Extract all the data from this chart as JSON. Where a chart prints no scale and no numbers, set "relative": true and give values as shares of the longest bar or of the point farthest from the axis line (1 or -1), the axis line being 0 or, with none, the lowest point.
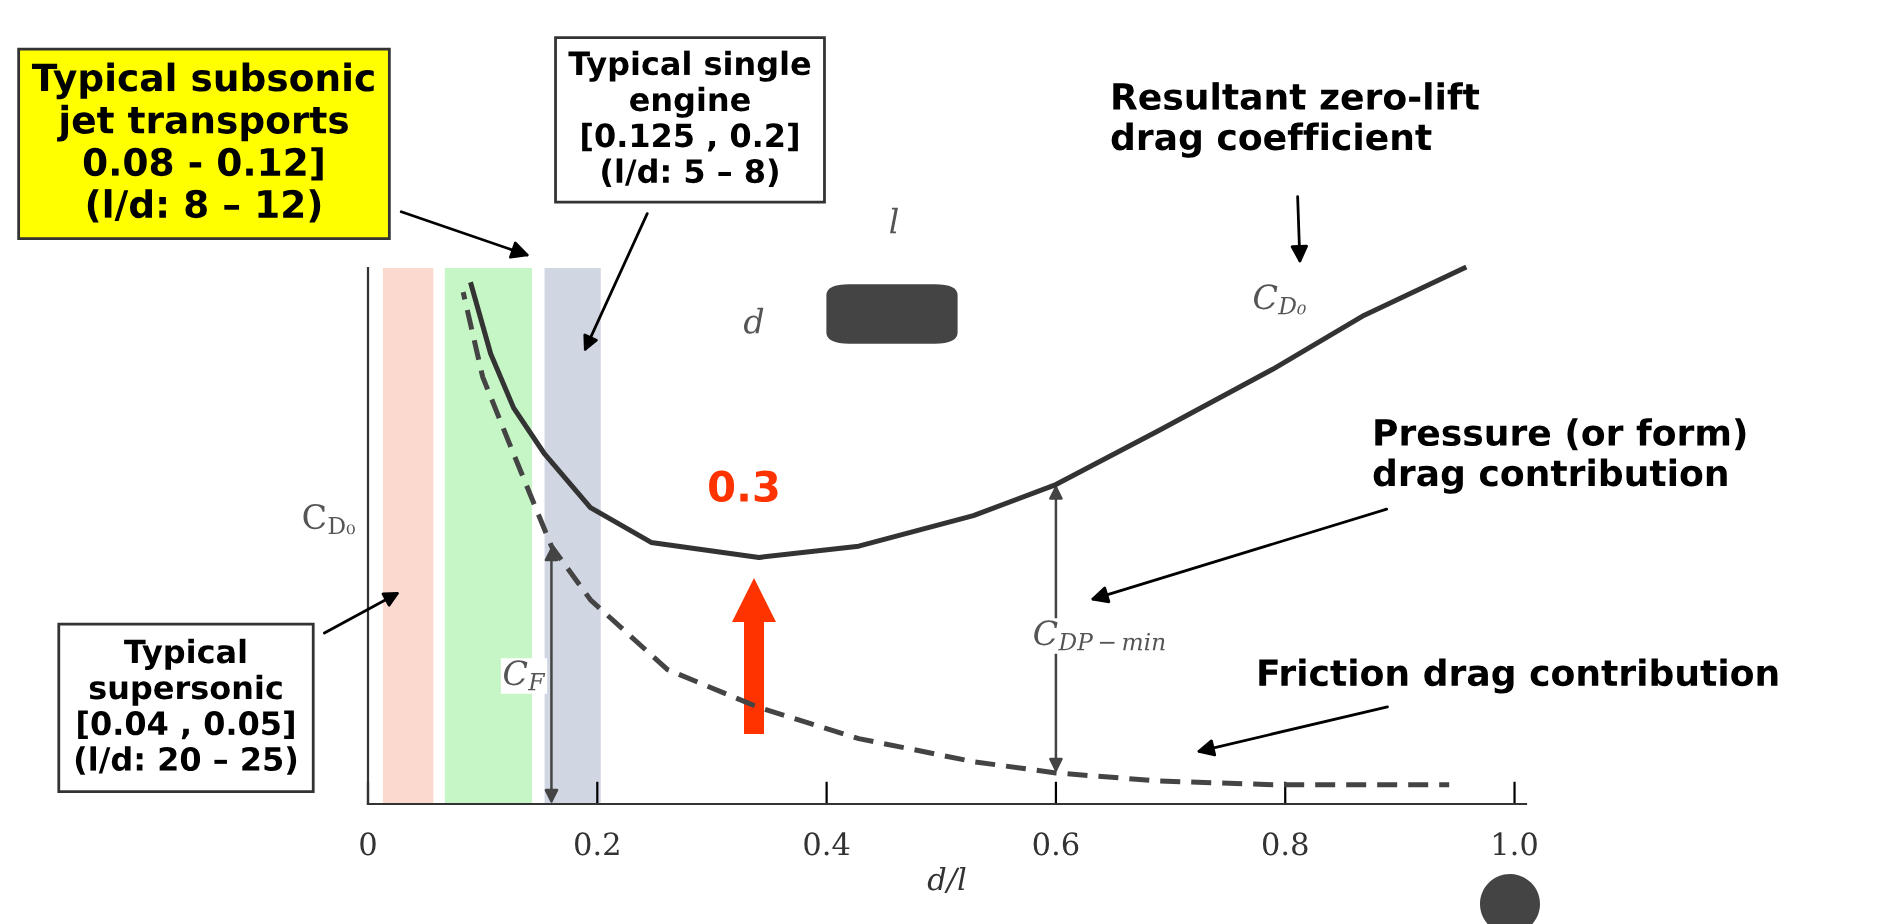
{
  "chart_data": {
    "type": "line",
    "relative": true,
    "xlabel": "d/l",
    "ylabel": "C$_{D₀}$",
    "xlim": [
      0,
      1.01
    ],
    "xticks": [
      0,
      0.2,
      0.4,
      0.6,
      0.8,
      {
        "value": 1.0,
        "label": "1.0"
      }
    ],
    "grid": false,
    "legend": false,
    "series": [
      {
        "color": "#333333",
        "line_style": "solid",
        "x": [
          0.09,
          0.107,
          0.127,
          0.154,
          0.194,
          0.247,
          0.341,
          0.428,
          0.528,
          0.6,
          0.689,
          0.789,
          0.869,
          0.956
        ],
        "values": [
          0.969,
          0.84,
          0.739,
          0.653,
          0.553,
          0.488,
          0.46,
          0.481,
          0.538,
          0.596,
          0.696,
          0.811,
          0.912,
          1.0
        ]
      },
      {
        "color": "#444444",
        "line_style": "dashed",
        "x": [
          0.083,
          0.1,
          0.127,
          0.16,
          0.194,
          0.261,
          0.341,
          0.428,
          0.528,
          0.6,
          0.689,
          0.789,
          0.943
        ],
        "values": [
          0.955,
          0.797,
          0.653,
          0.481,
          0.381,
          0.251,
          0.18,
          0.122,
          0.079,
          0.058,
          0.043,
          0.036,
          0.036
        ]
      }
    ],
    "bands": [
      {
        "axis": "x",
        "from": 0.013,
        "to": 0.057,
        "color": "#fcd9cf"
      },
      {
        "axis": "x",
        "from": 0.067,
        "to": 0.143,
        "color": "#c6f5c6"
      },
      {
        "axis": "x",
        "from": 0.154,
        "to": 0.203,
        "color": "#d0d6e2"
      }
    ],
    "annotations": [
      "Typical subsonic\njet transports\n0.08 - 0.12]\n(l/d: 8 – 12)",
      "Typical single\nengine\n[0.125 , 0.2]\n(l/d: 5 – 8)",
      "Resultant zero-lift\ndrag coefficient",
      "Pressure (or form)\ndrag contribution",
      "Friction drag contribution",
      "Typical\nsupersonic\n[0.04 , 0.05]\n(l/d: 20 – 25)",
      "0.3",
      "C$_{D₀}$",
      "C$_{F}$",
      "C$_{DP−min}$",
      "d",
      "l"
    ]
  }
}
